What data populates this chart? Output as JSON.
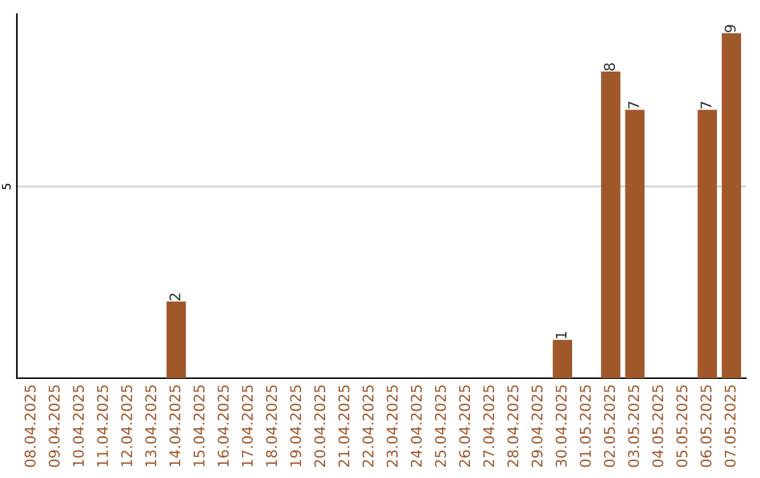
{
  "chart_data": {
    "type": "bar",
    "categories": [
      "08.04.2025",
      "09.04.2025",
      "10.04.2025",
      "11.04.2025",
      "12.04.2025",
      "13.04.2025",
      "14.04.2025",
      "15.04.2025",
      "16.04.2025",
      "17.04.2025",
      "18.04.2025",
      "19.04.2025",
      "20.04.2025",
      "21.04.2025",
      "22.04.2025",
      "23.04.2025",
      "24.04.2025",
      "25.04.2025",
      "26.04.2025",
      "27.04.2025",
      "28.04.2025",
      "29.04.2025",
      "30.04.2025",
      "01.05.2025",
      "02.05.2025",
      "03.05.2025",
      "04.05.2025",
      "05.05.2025",
      "06.05.2025",
      "07.05.2025"
    ],
    "values": [
      0,
      0,
      0,
      0,
      0,
      0,
      2,
      0,
      0,
      0,
      0,
      0,
      0,
      0,
      0,
      0,
      0,
      0,
      0,
      0,
      0,
      0,
      1,
      0,
      8,
      7,
      0,
      0,
      7,
      9
    ],
    "value_labels": [
      null,
      null,
      null,
      null,
      null,
      null,
      "2",
      null,
      null,
      null,
      null,
      null,
      null,
      null,
      null,
      null,
      null,
      null,
      null,
      null,
      null,
      null,
      "1",
      null,
      "8",
      "7",
      null,
      null,
      "7",
      "9"
    ],
    "color": "#a0572a",
    "ylim": [
      0,
      9.5
    ],
    "yticks": [
      5
    ],
    "grid": "y"
  }
}
